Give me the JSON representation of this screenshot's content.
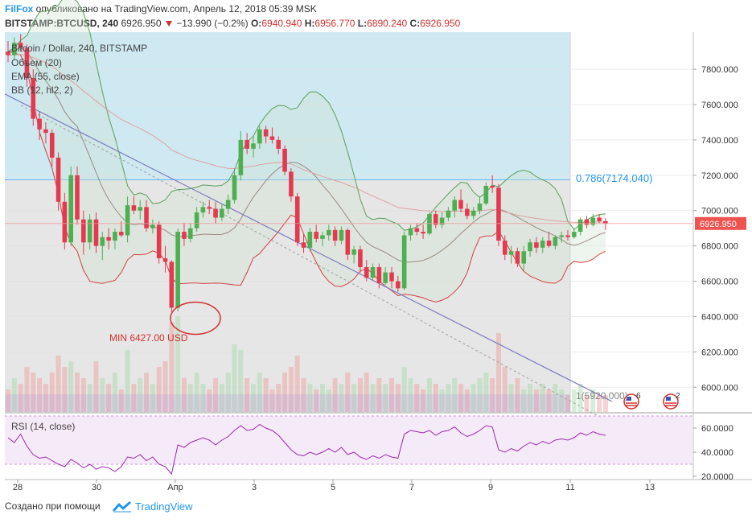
{
  "header": {
    "brand": "FilFox",
    "published": " опубликовано на TradingView.com, Апрель 12, 2018 05:39 MSK",
    "symbol": "BITSTAMP:BTCUSD, 240",
    "last": "6926.950",
    "change": "−13.990 (−0.2%)",
    "o_label": "O:",
    "o": "6940.940",
    "h_label": "H:",
    "h": "6956.770",
    "l_label": "L:",
    "l": "6890.240",
    "c_label": "C:",
    "c": "6926.950"
  },
  "legend": {
    "title": "Bitcoin / Dollar, 240, BITSTAMP",
    "volume": "Объем (20)",
    "ema": "EMA (55, close)",
    "bb": "BB (12, hl2, 2)",
    "rsi": "RSI (14, close)"
  },
  "annotations": {
    "min_label": "MIN 6427.00 USD",
    "fib_0786": "0.786(7174.040)",
    "fib_1": "1(5920.000)",
    "price_tag": "6926.950",
    "flag_left_count": "6",
    "flag_right_count": "2"
  },
  "footer": {
    "made_with": "Создано при помощи",
    "tv_brand": "TradingView"
  },
  "colors": {
    "up": "#4caf50",
    "down": "#e53950",
    "bb": "#5a9e5a",
    "bb_lower": "#d04040",
    "ema": "#e0a0a0",
    "fib_top": "#cfe9f3",
    "fib_mid": "#e6e6e6",
    "trend": "#7b7bc2",
    "rsi_band": "#f3e5f5",
    "rsi_line": "#9c27b0",
    "accent": "#2196f3"
  },
  "chart_data": {
    "type": "candlestick",
    "x_tick_labels": [
      "28",
      "30",
      "Апр",
      "3",
      "5",
      "7",
      "9",
      "11",
      "13"
    ],
    "y_tick_labels": [
      "7800.000",
      "7600.000",
      "7400.000",
      "7200.000",
      "7000.000",
      "6800.000",
      "6600.000",
      "6400.000",
      "6200.000",
      "6000.000"
    ],
    "y_range": [
      5860,
      8010
    ],
    "rsi_tick_labels": [
      "60.0000",
      "40.0000",
      "20.0000"
    ],
    "rsi_range": [
      18,
      72
    ],
    "ohlc": [
      [
        7900,
        7960,
        7840,
        7880
      ],
      [
        7880,
        7980,
        7850,
        7950
      ],
      [
        7950,
        8000,
        7900,
        7920
      ],
      [
        7920,
        7940,
        7700,
        7750
      ],
      [
        7750,
        7800,
        7480,
        7520
      ],
      [
        7520,
        7560,
        7400,
        7460
      ],
      [
        7460,
        7500,
        7380,
        7440
      ],
      [
        7440,
        7460,
        7250,
        7300
      ],
      [
        7300,
        7330,
        7000,
        7050
      ],
      [
        7050,
        7100,
        6780,
        6820
      ],
      [
        6820,
        7250,
        6800,
        7200
      ],
      [
        7200,
        7250,
        6920,
        6950
      ],
      [
        6950,
        7000,
        6750,
        6820
      ],
      [
        6820,
        6980,
        6780,
        6950
      ],
      [
        6950,
        6990,
        6760,
        6800
      ],
      [
        6800,
        6880,
        6720,
        6850
      ],
      [
        6850,
        6900,
        6780,
        6830
      ],
      [
        6830,
        6900,
        6780,
        6880
      ],
      [
        6880,
        6940,
        6850,
        6860
      ],
      [
        6860,
        7080,
        6820,
        7030
      ],
      [
        7030,
        7080,
        6980,
        7000
      ],
      [
        7000,
        7060,
        6950,
        7020
      ],
      [
        7020,
        7060,
        6880,
        6900
      ],
      [
        6900,
        6950,
        6870,
        6920
      ],
      [
        6920,
        6940,
        6700,
        6730
      ],
      [
        6730,
        6800,
        6650,
        6710
      ],
      [
        6710,
        6720,
        6427,
        6450
      ],
      [
        6450,
        6900,
        6430,
        6880
      ],
      [
        6880,
        6930,
        6800,
        6840
      ],
      [
        6840,
        6930,
        6820,
        6900
      ],
      [
        6900,
        7020,
        6880,
        6990
      ],
      [
        6990,
        7050,
        6960,
        7020
      ],
      [
        7020,
        7060,
        6980,
        7010
      ],
      [
        7010,
        7050,
        6930,
        6960
      ],
      [
        6960,
        7040,
        6940,
        7010
      ],
      [
        7010,
        7090,
        6980,
        7060
      ],
      [
        7060,
        7240,
        7040,
        7200
      ],
      [
        7200,
        7450,
        7170,
        7400
      ],
      [
        7400,
        7440,
        7320,
        7350
      ],
      [
        7350,
        7420,
        7300,
        7380
      ],
      [
        7380,
        7480,
        7350,
        7460
      ],
      [
        7460,
        7480,
        7380,
        7420
      ],
      [
        7420,
        7470,
        7380,
        7400
      ],
      [
        7400,
        7420,
        7320,
        7350
      ],
      [
        7350,
        7370,
        7200,
        7220
      ],
      [
        7220,
        7240,
        7050,
        7080
      ],
      [
        7080,
        7100,
        6800,
        6820
      ],
      [
        6820,
        6870,
        6760,
        6790
      ],
      [
        6790,
        6900,
        6770,
        6880
      ],
      [
        6880,
        6920,
        6820,
        6840
      ],
      [
        6840,
        6880,
        6800,
        6860
      ],
      [
        6860,
        6920,
        6830,
        6890
      ],
      [
        6890,
        6910,
        6800,
        6830
      ],
      [
        6830,
        6910,
        6810,
        6890
      ],
      [
        6890,
        6900,
        6720,
        6750
      ],
      [
        6750,
        6800,
        6700,
        6780
      ],
      [
        6780,
        6800,
        6650,
        6680
      ],
      [
        6680,
        6720,
        6600,
        6620
      ],
      [
        6620,
        6700,
        6600,
        6680
      ],
      [
        6680,
        6700,
        6560,
        6590
      ],
      [
        6590,
        6680,
        6580,
        6650
      ],
      [
        6650,
        6680,
        6560,
        6600
      ],
      [
        6600,
        6630,
        6540,
        6560
      ],
      [
        6560,
        6880,
        6550,
        6860
      ],
      [
        6860,
        6920,
        6830,
        6900
      ],
      [
        6900,
        6930,
        6860,
        6880
      ],
      [
        6880,
        6920,
        6840,
        6870
      ],
      [
        6870,
        6990,
        6860,
        6980
      ],
      [
        6980,
        7000,
        6900,
        6920
      ],
      [
        6920,
        6990,
        6900,
        6960
      ],
      [
        6960,
        7020,
        6940,
        7000
      ],
      [
        7000,
        7080,
        6960,
        7060
      ],
      [
        7060,
        7120,
        6990,
        7010
      ],
      [
        7010,
        7040,
        6950,
        6970
      ],
      [
        6970,
        7020,
        6950,
        7000
      ],
      [
        7000,
        7080,
        6980,
        7040
      ],
      [
        7040,
        7160,
        7030,
        7140
      ],
      [
        7140,
        7200,
        7100,
        7130
      ],
      [
        7130,
        7150,
        6800,
        6830
      ],
      [
        6830,
        6860,
        6720,
        6750
      ],
      [
        6750,
        6800,
        6700,
        6770
      ],
      [
        6770,
        6790,
        6680,
        6700
      ],
      [
        6700,
        6800,
        6660,
        6770
      ],
      [
        6770,
        6840,
        6740,
        6820
      ],
      [
        6820,
        6850,
        6760,
        6790
      ],
      [
        6790,
        6850,
        6760,
        6830
      ],
      [
        6830,
        6880,
        6790,
        6800
      ],
      [
        6800,
        6860,
        6780,
        6850
      ],
      [
        6850,
        6880,
        6820,
        6860
      ],
      [
        6860,
        6890,
        6830,
        6850
      ],
      [
        6850,
        6900,
        6840,
        6880
      ],
      [
        6880,
        6960,
        6860,
        6950
      ],
      [
        6950,
        6970,
        6900,
        6920
      ],
      [
        6920,
        6980,
        6910,
        6960
      ],
      [
        6960,
        6980,
        6930,
        6940
      ],
      [
        6940,
        6957,
        6890,
        6927
      ]
    ],
    "volume_relative": [
      0.2,
      0.3,
      0.25,
      0.4,
      0.35,
      0.3,
      0.25,
      0.35,
      0.5,
      0.4,
      0.45,
      0.35,
      0.3,
      0.25,
      0.45,
      0.3,
      0.25,
      0.35,
      0.2,
      0.55,
      0.25,
      0.3,
      0.35,
      0.25,
      0.4,
      0.45,
      0.8,
      0.85,
      0.3,
      0.25,
      0.35,
      0.25,
      0.2,
      0.3,
      0.25,
      0.35,
      0.6,
      0.55,
      0.3,
      0.25,
      0.35,
      0.3,
      0.2,
      0.25,
      0.35,
      0.4,
      0.5,
      0.3,
      0.25,
      0.2,
      0.25,
      0.2,
      0.3,
      0.25,
      0.35,
      0.25,
      0.3,
      0.35,
      0.25,
      0.3,
      0.25,
      0.3,
      0.25,
      0.4,
      0.3,
      0.25,
      0.2,
      0.3,
      0.25,
      0.2,
      0.25,
      0.3,
      0.25,
      0.2,
      0.25,
      0.3,
      0.35,
      0.3,
      0.7,
      0.4,
      0.25,
      0.3,
      0.2,
      0.25,
      0.2,
      0.25,
      0.2,
      0.25,
      0.2,
      0.15,
      0.2,
      0.25,
      0.15,
      0.2,
      0.15,
      0.15
    ],
    "fib_levels": [
      {
        "ratio": 0.786,
        "price": 7174.04
      },
      {
        "ratio": 1,
        "price": 5920.0
      }
    ],
    "trendline": {
      "from": [
        0,
        7660
      ],
      "to": [
        96,
        5920
      ]
    },
    "rsi": [
      52,
      48,
      55,
      45,
      38,
      35,
      36,
      33,
      30,
      28,
      34,
      31,
      27,
      30,
      26,
      28,
      27,
      24,
      28,
      36,
      35,
      38,
      33,
      36,
      30,
      28,
      22,
      46,
      44,
      48,
      50,
      52,
      50,
      46,
      50,
      53,
      58,
      62,
      58,
      59,
      63,
      60,
      58,
      54,
      48,
      42,
      38,
      37,
      40,
      38,
      40,
      43,
      40,
      44,
      38,
      40,
      36,
      34,
      37,
      35,
      38,
      36,
      35,
      55,
      58,
      57,
      56,
      58,
      54,
      57,
      58,
      61,
      56,
      53,
      55,
      58,
      62,
      61,
      42,
      40,
      43,
      41,
      45,
      48,
      46,
      49,
      47,
      50,
      51,
      50,
      52,
      56,
      54,
      57,
      55,
      54
    ]
  }
}
